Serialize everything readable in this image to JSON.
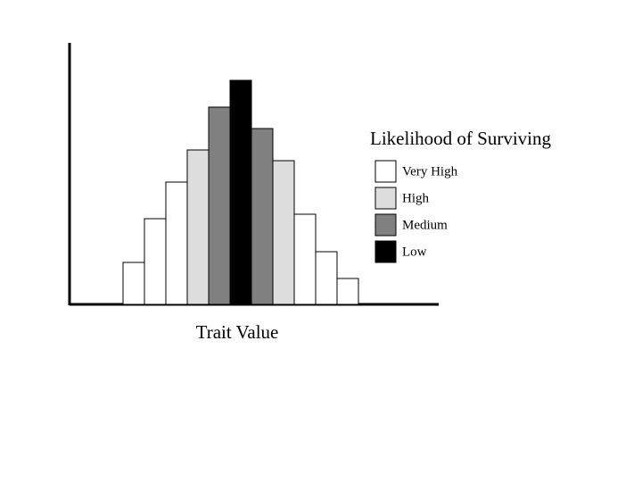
{
  "chart_data": {
    "type": "bar",
    "xlabel": "Trait Value",
    "values": [
      47,
      96,
      137,
      173,
      221,
      251,
      197,
      161,
      101,
      59,
      29
    ],
    "colors": [
      "#ffffff",
      "#ffffff",
      "#ffffff",
      "#dddddd",
      "#808080",
      "#000000",
      "#808080",
      "#dddddd",
      "#ffffff",
      "#ffffff",
      "#ffffff"
    ],
    "ylim": [
      0,
      293
    ],
    "legend": {
      "title": "Likelihood of Surviving",
      "items": [
        {
          "name": "Very High",
          "color": "#ffffff"
        },
        {
          "name": "High",
          "color": "#dddddd"
        },
        {
          "name": "Medium",
          "color": "#808080"
        },
        {
          "name": "Low",
          "color": "#000000"
        }
      ]
    }
  }
}
